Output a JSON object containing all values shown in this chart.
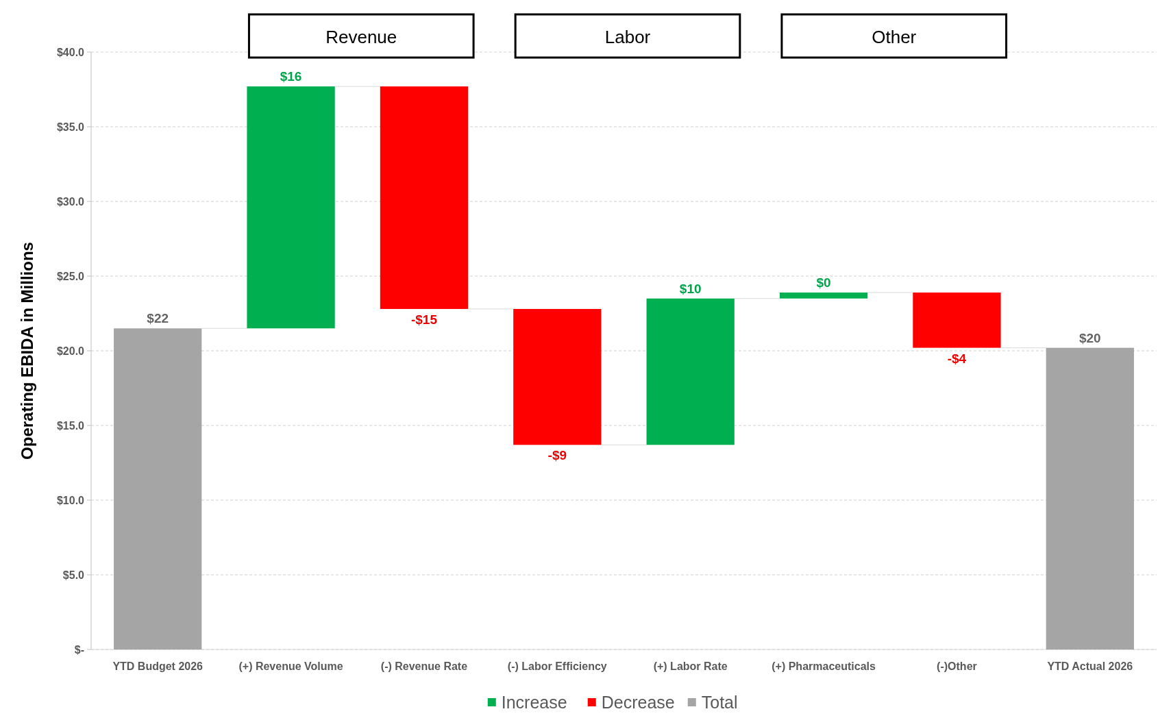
{
  "chart_data": {
    "type": "bar",
    "ylabel": "Operating EBIDA in Millions",
    "categories": [
      "YTD Budget 2026",
      "(+) Revenue Volume",
      "(-) Revenue Rate",
      "(-) Labor Efficiency",
      "(+) Labor Rate",
      "(+) Pharmaceuticals",
      "(-)Other",
      "YTD Actual 2026"
    ],
    "series": [
      {
        "name": "Increase",
        "color": "#00b050",
        "base": [
          null,
          21.5,
          null,
          null,
          13.7,
          23.5,
          null,
          null
        ],
        "values": [
          null,
          16.2,
          null,
          null,
          9.8,
          0.4,
          null,
          null
        ],
        "value_labels": [
          null,
          "$16",
          null,
          null,
          "$10",
          "$0",
          null,
          null
        ]
      },
      {
        "name": "Decrease",
        "color": "#ff0000",
        "base": [
          null,
          null,
          37.7,
          22.8,
          null,
          null,
          23.9,
          null
        ],
        "values": [
          null,
          null,
          -14.9,
          -9.1,
          null,
          null,
          -3.7,
          null
        ],
        "value_labels": [
          null,
          null,
          "-$15",
          "-$9",
          null,
          null,
          "-$4",
          null
        ]
      },
      {
        "name": "Total",
        "color": "#a5a5a5",
        "base": [
          0,
          null,
          null,
          null,
          null,
          null,
          null,
          0
        ],
        "values": [
          21.5,
          null,
          null,
          null,
          null,
          null,
          null,
          20.2
        ],
        "value_labels": [
          "$22",
          null,
          null,
          null,
          null,
          null,
          null,
          "$20"
        ]
      }
    ],
    "ylim": [
      0,
      40
    ],
    "yticks": [
      {
        "value": 0,
        "label": "$-"
      },
      {
        "value": 5,
        "label": "$5.0"
      },
      {
        "value": 10,
        "label": "$10.0"
      },
      {
        "value": 15,
        "label": "$15.0"
      },
      {
        "value": 20,
        "label": "$20.0"
      },
      {
        "value": 25,
        "label": "$25.0"
      },
      {
        "value": 30,
        "label": "$30.0"
      },
      {
        "value": 35,
        "label": "$35.0"
      },
      {
        "value": 40,
        "label": "$40.0"
      }
    ],
    "grid": "y",
    "legend": "bottom",
    "annotations": [
      "Revenue",
      "Labor",
      "Other"
    ]
  }
}
